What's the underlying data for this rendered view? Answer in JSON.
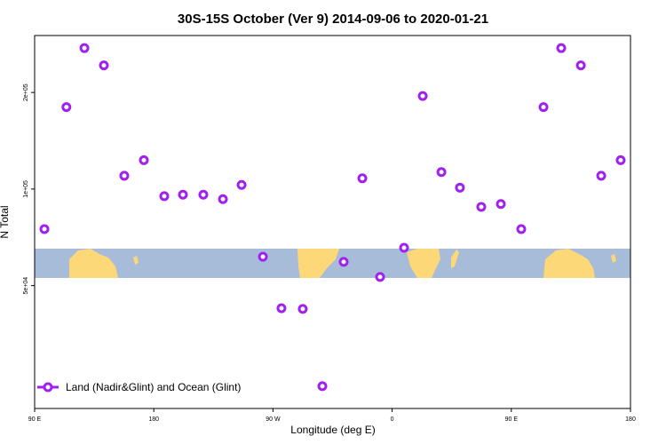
{
  "chart_data": {
    "type": "scatter",
    "title": "30S-15S October (Ver 9)   2014-09-06 to 2020-01-21",
    "x_label": "Longitude (deg E)",
    "y_label": "N Total",
    "log_y": true,
    "legend_position": "bottom-left",
    "xlim": [
      90,
      540
    ],
    "ylim": [
      20700,
      301000
    ],
    "xticks": [
      {
        "value": 90,
        "label": "90 E"
      },
      180,
      {
        "value": 270,
        "label": "90 W"
      },
      {
        "value": 360,
        "label": "0"
      },
      {
        "value": 450,
        "label": "90 E"
      },
      {
        "value": 540,
        "label": "180"
      }
    ],
    "yticks": [
      {
        "value": 50000,
        "label": "5e+04"
      },
      {
        "value": 100000,
        "label": "1e+05"
      },
      {
        "value": 200000,
        "label": "2e+05"
      }
    ],
    "series": [
      {
        "name": "Land (Nadir&Glint) and Ocean (Glint)",
        "color": "#a020f0",
        "x": [
          97.4,
          114,
          127.6,
          142.3,
          157.7,
          172.5,
          187.9,
          202,
          217.4,
          232.2,
          246.3,
          262.4,
          276.4,
          292.5,
          307.3,
          323.4,
          337.5,
          350.9,
          369,
          383.1,
          397.2,
          411.2,
          427.3,
          442.1,
          457.5,
          474.3,
          487.7,
          502.5,
          517.9,
          532.6
        ],
        "values": [
          75000,
          180000,
          275000,
          243000,
          110000,
          123000,
          95000,
          96000,
          96000,
          93000,
          103000,
          61500,
          42500,
          42300,
          24300,
          59300,
          108000,
          53200,
          65600,
          195000,
          113000,
          101000,
          88000,
          89800,
          75000,
          180000,
          275000,
          243000,
          110000,
          123000
        ]
      }
    ]
  }
}
